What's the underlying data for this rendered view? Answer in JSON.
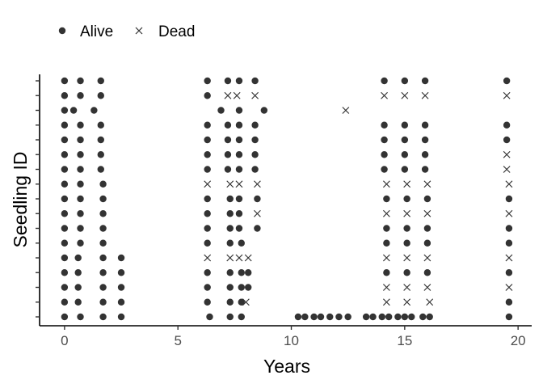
{
  "chart_data": {
    "type": "scatter",
    "xlabel": "Years",
    "ylabel": "Seedling ID",
    "xlim": [
      -1.1,
      20.6
    ],
    "xticks": [
      0,
      5,
      10,
      15,
      20
    ],
    "n_seedlings": 17,
    "grid": false,
    "legend_position": "top-left",
    "legend": [
      {
        "label": "Alive",
        "marker": "dot"
      },
      {
        "label": "Dead",
        "marker": "cross"
      }
    ],
    "colors": {
      "points": "#333333",
      "axis": "#000000",
      "tick_label": "#4d4d4d"
    },
    "observations": [
      {
        "id": 17,
        "points": [
          [
            0,
            "a"
          ],
          [
            0.7,
            "a"
          ],
          [
            1.6,
            "a"
          ],
          [
            6.3,
            "a"
          ],
          [
            7.2,
            "a"
          ],
          [
            7.7,
            "a"
          ],
          [
            8.4,
            "a"
          ],
          [
            14.1,
            "a"
          ],
          [
            15,
            "a"
          ],
          [
            15.9,
            "a"
          ],
          [
            19.5,
            "a"
          ]
        ]
      },
      {
        "id": 16,
        "points": [
          [
            0,
            "a"
          ],
          [
            0.7,
            "a"
          ],
          [
            1.6,
            "a"
          ],
          [
            6.3,
            "a"
          ],
          [
            7.2,
            "d"
          ],
          [
            7.6,
            "d"
          ],
          [
            8.4,
            "d"
          ],
          [
            14.1,
            "d"
          ],
          [
            15,
            "d"
          ],
          [
            15.9,
            "d"
          ],
          [
            19.5,
            "d"
          ]
        ]
      },
      {
        "id": 15,
        "points": [
          [
            0,
            "a"
          ],
          [
            0.4,
            "a"
          ],
          [
            1.3,
            "a"
          ],
          [
            6.9,
            "a"
          ],
          [
            7.7,
            "a"
          ],
          [
            8.8,
            "a"
          ],
          [
            12.4,
            "d"
          ]
        ]
      },
      {
        "id": 14,
        "points": [
          [
            0,
            "a"
          ],
          [
            0.7,
            "a"
          ],
          [
            1.6,
            "a"
          ],
          [
            6.3,
            "a"
          ],
          [
            7.2,
            "a"
          ],
          [
            7.7,
            "a"
          ],
          [
            8.4,
            "a"
          ],
          [
            14.1,
            "a"
          ],
          [
            15,
            "a"
          ],
          [
            15.9,
            "a"
          ],
          [
            19.5,
            "a"
          ]
        ]
      },
      {
        "id": 13,
        "points": [
          [
            0,
            "a"
          ],
          [
            0.7,
            "a"
          ],
          [
            1.6,
            "a"
          ],
          [
            6.3,
            "a"
          ],
          [
            7.2,
            "a"
          ],
          [
            7.7,
            "a"
          ],
          [
            8.4,
            "a"
          ],
          [
            14.1,
            "a"
          ],
          [
            15,
            "a"
          ],
          [
            15.9,
            "a"
          ],
          [
            19.5,
            "a"
          ]
        ]
      },
      {
        "id": 12,
        "points": [
          [
            0,
            "a"
          ],
          [
            0.7,
            "a"
          ],
          [
            1.6,
            "a"
          ],
          [
            6.3,
            "a"
          ],
          [
            7.2,
            "a"
          ],
          [
            7.7,
            "a"
          ],
          [
            8.4,
            "a"
          ],
          [
            14.1,
            "a"
          ],
          [
            15,
            "a"
          ],
          [
            15.9,
            "a"
          ],
          [
            19.5,
            "d"
          ]
        ]
      },
      {
        "id": 11,
        "points": [
          [
            0,
            "a"
          ],
          [
            0.7,
            "a"
          ],
          [
            1.6,
            "a"
          ],
          [
            6.3,
            "a"
          ],
          [
            7.2,
            "a"
          ],
          [
            7.7,
            "a"
          ],
          [
            8.4,
            "a"
          ],
          [
            14.1,
            "a"
          ],
          [
            15,
            "a"
          ],
          [
            15.9,
            "a"
          ],
          [
            19.5,
            "d"
          ]
        ]
      },
      {
        "id": 10,
        "points": [
          [
            0,
            "a"
          ],
          [
            0.7,
            "a"
          ],
          [
            1.7,
            "a"
          ],
          [
            6.3,
            "d"
          ],
          [
            7.3,
            "d"
          ],
          [
            7.7,
            "d"
          ],
          [
            8.5,
            "d"
          ],
          [
            14.2,
            "d"
          ],
          [
            15.1,
            "d"
          ],
          [
            16,
            "d"
          ],
          [
            19.6,
            "d"
          ]
        ]
      },
      {
        "id": 9,
        "points": [
          [
            0,
            "a"
          ],
          [
            0.7,
            "a"
          ],
          [
            1.7,
            "a"
          ],
          [
            6.3,
            "a"
          ],
          [
            7.3,
            "a"
          ],
          [
            7.7,
            "a"
          ],
          [
            8.5,
            "a"
          ],
          [
            14.2,
            "a"
          ],
          [
            15.1,
            "a"
          ],
          [
            16,
            "a"
          ],
          [
            19.6,
            "a"
          ]
        ]
      },
      {
        "id": 8,
        "points": [
          [
            0,
            "a"
          ],
          [
            0.7,
            "a"
          ],
          [
            1.7,
            "a"
          ],
          [
            6.3,
            "a"
          ],
          [
            7.3,
            "a"
          ],
          [
            7.7,
            "a"
          ],
          [
            8.5,
            "d"
          ],
          [
            14.2,
            "d"
          ],
          [
            15.1,
            "d"
          ],
          [
            16,
            "d"
          ],
          [
            19.6,
            "d"
          ]
        ]
      },
      {
        "id": 7,
        "points": [
          [
            0,
            "a"
          ],
          [
            0.7,
            "a"
          ],
          [
            1.7,
            "a"
          ],
          [
            6.3,
            "a"
          ],
          [
            7.3,
            "a"
          ],
          [
            7.7,
            "a"
          ],
          [
            8.5,
            "a"
          ],
          [
            14.2,
            "a"
          ],
          [
            15.1,
            "a"
          ],
          [
            16,
            "a"
          ],
          [
            19.6,
            "a"
          ]
        ]
      },
      {
        "id": 6,
        "points": [
          [
            0,
            "a"
          ],
          [
            0.7,
            "a"
          ],
          [
            1.7,
            "a"
          ],
          [
            6.3,
            "a"
          ],
          [
            7.3,
            "a"
          ],
          [
            7.8,
            "a"
          ],
          [
            14.2,
            "a"
          ],
          [
            15.1,
            "a"
          ],
          [
            16,
            "a"
          ],
          [
            19.6,
            "a"
          ]
        ]
      },
      {
        "id": 5,
        "points": [
          [
            0,
            "a"
          ],
          [
            0.6,
            "a"
          ],
          [
            1.7,
            "a"
          ],
          [
            2.5,
            "a"
          ],
          [
            6.3,
            "d"
          ],
          [
            7.3,
            "d"
          ],
          [
            7.7,
            "d"
          ],
          [
            8.1,
            "d"
          ],
          [
            14.2,
            "d"
          ],
          [
            15.1,
            "d"
          ],
          [
            16,
            "d"
          ],
          [
            19.6,
            "d"
          ]
        ]
      },
      {
        "id": 4,
        "points": [
          [
            0,
            "a"
          ],
          [
            0.6,
            "a"
          ],
          [
            1.7,
            "a"
          ],
          [
            2.5,
            "a"
          ],
          [
            6.3,
            "a"
          ],
          [
            7.3,
            "a"
          ],
          [
            7.8,
            "a"
          ],
          [
            8.1,
            "a"
          ],
          [
            14.2,
            "a"
          ],
          [
            15.1,
            "a"
          ],
          [
            16,
            "a"
          ],
          [
            19.6,
            "a"
          ]
        ]
      },
      {
        "id": 3,
        "points": [
          [
            0,
            "a"
          ],
          [
            0.6,
            "a"
          ],
          [
            1.7,
            "a"
          ],
          [
            2.5,
            "a"
          ],
          [
            6.3,
            "a"
          ],
          [
            7.3,
            "a"
          ],
          [
            7.8,
            "a"
          ],
          [
            8.1,
            "a"
          ],
          [
            14.2,
            "d"
          ],
          [
            15.1,
            "d"
          ],
          [
            16,
            "d"
          ],
          [
            19.6,
            "d"
          ]
        ]
      },
      {
        "id": 2,
        "points": [
          [
            0,
            "a"
          ],
          [
            0.6,
            "a"
          ],
          [
            1.7,
            "a"
          ],
          [
            2.5,
            "a"
          ],
          [
            6.3,
            "a"
          ],
          [
            7.3,
            "a"
          ],
          [
            7.8,
            "a"
          ],
          [
            8.0,
            "d"
          ],
          [
            14.2,
            "d"
          ],
          [
            15.1,
            "d"
          ],
          [
            16.1,
            "d"
          ],
          [
            19.6,
            "a"
          ]
        ]
      },
      {
        "id": 1,
        "points": [
          [
            0,
            "a"
          ],
          [
            0.7,
            "a"
          ],
          [
            1.7,
            "a"
          ],
          [
            2.5,
            "a"
          ],
          [
            6.4,
            "a"
          ],
          [
            7.3,
            "a"
          ],
          [
            7.8,
            "a"
          ],
          [
            10.3,
            "a"
          ],
          [
            10.6,
            "a"
          ],
          [
            11.0,
            "a"
          ],
          [
            11.3,
            "a"
          ],
          [
            11.7,
            "a"
          ],
          [
            12.1,
            "a"
          ],
          [
            12.5,
            "a"
          ],
          [
            13.3,
            "a"
          ],
          [
            13.6,
            "a"
          ],
          [
            14.0,
            "a"
          ],
          [
            14.3,
            "a"
          ],
          [
            14.7,
            "a"
          ],
          [
            15.0,
            "a"
          ],
          [
            15.3,
            "a"
          ],
          [
            15.8,
            "a"
          ],
          [
            16.1,
            "a"
          ],
          [
            19.6,
            "a"
          ]
        ]
      }
    ]
  }
}
